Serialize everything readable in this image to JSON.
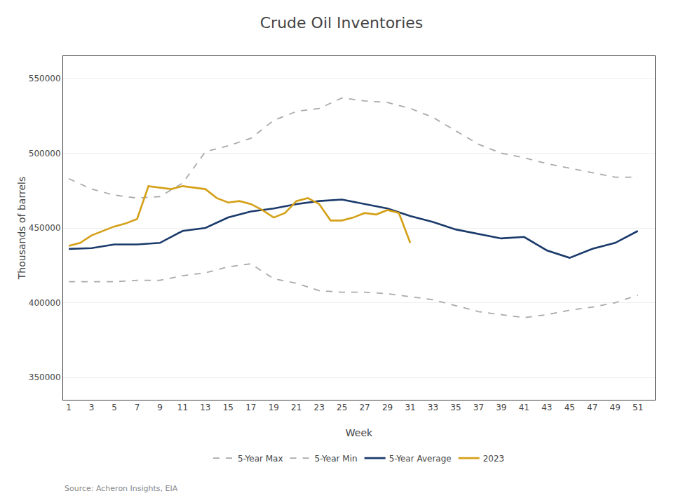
{
  "chart_data": {
    "type": "line",
    "title": "Crude Oil Inventories",
    "x_label": "Week",
    "y_label": "Thousands of barrels",
    "annotations": [
      "Source: Acheron Insights, EIA"
    ],
    "xlim": [
      0.5,
      52.5
    ],
    "xticks": [
      1,
      3,
      5,
      7,
      9,
      11,
      13,
      15,
      17,
      19,
      21,
      23,
      25,
      27,
      29,
      31,
      33,
      35,
      37,
      39,
      41,
      43,
      45,
      47,
      49,
      51
    ],
    "ylim": [
      335000,
      565000
    ],
    "yticks": [
      350000,
      400000,
      450000,
      500000,
      550000
    ],
    "grid": true,
    "legend": "bottom",
    "series": [
      {
        "name": "5-Year Max",
        "color": "#aaaaaa",
        "line_style": "dashed",
        "x": [
          1,
          3,
          5,
          7,
          9,
          11,
          13,
          15,
          17,
          19,
          21,
          23,
          25,
          27,
          29,
          31,
          33,
          35,
          37,
          39,
          41,
          43,
          45,
          47,
          49,
          51
        ],
        "values": [
          483000,
          476000,
          472000,
          470000,
          471000,
          480000,
          501000,
          505000,
          510000,
          522000,
          528000,
          530000,
          537000,
          535000,
          534000,
          530000,
          524000,
          515000,
          506000,
          500000,
          497000,
          493000,
          490000,
          487000,
          484000,
          484000
        ]
      },
      {
        "name": "5-Year Min",
        "color": "#aaaaaa",
        "line_style": "dashed",
        "x": [
          1,
          3,
          5,
          7,
          9,
          11,
          13,
          15,
          17,
          19,
          21,
          23,
          25,
          27,
          29,
          31,
          33,
          35,
          37,
          39,
          41,
          43,
          45,
          47,
          49,
          51
        ],
        "values": [
          414000,
          414000,
          414000,
          415000,
          415000,
          418000,
          420000,
          424000,
          426000,
          416000,
          413000,
          408000,
          407000,
          407000,
          406000,
          404000,
          402000,
          398000,
          394000,
          392000,
          390000,
          392000,
          395000,
          397000,
          400000,
          405000
        ]
      },
      {
        "name": "5-Year Average",
        "color": "#1a3a6b",
        "line_style": "solid",
        "x": [
          1,
          3,
          5,
          7,
          9,
          11,
          13,
          15,
          17,
          19,
          21,
          23,
          25,
          27,
          29,
          31,
          33,
          35,
          37,
          39,
          41,
          43,
          45,
          47,
          49,
          51
        ],
        "values": [
          436000,
          436500,
          439000,
          439000,
          440000,
          448000,
          450000,
          457000,
          461000,
          463000,
          466000,
          468000,
          469000,
          466000,
          463000,
          458000,
          454000,
          449000,
          446000,
          443000,
          444000,
          435000,
          430000,
          436000,
          440000,
          448000
        ]
      },
      {
        "name": "2023",
        "color": "#d4a017",
        "line_style": "solid",
        "x": [
          1,
          2,
          3,
          4,
          5,
          6,
          7,
          8,
          9,
          10,
          11,
          12,
          13,
          14,
          15,
          16,
          17,
          18,
          19,
          20,
          21,
          22,
          23,
          24,
          25,
          26,
          27,
          28,
          29,
          30,
          31
        ],
        "values": [
          438000,
          440000,
          445000,
          448000,
          451000,
          453000,
          456000,
          478000,
          477000,
          476000,
          478000,
          477000,
          476000,
          470000,
          467000,
          468000,
          466000,
          462000,
          457000,
          460000,
          468000,
          470000,
          466000,
          455000,
          455000,
          457000,
          460000,
          459000,
          462000,
          460000,
          440000
        ]
      }
    ]
  }
}
